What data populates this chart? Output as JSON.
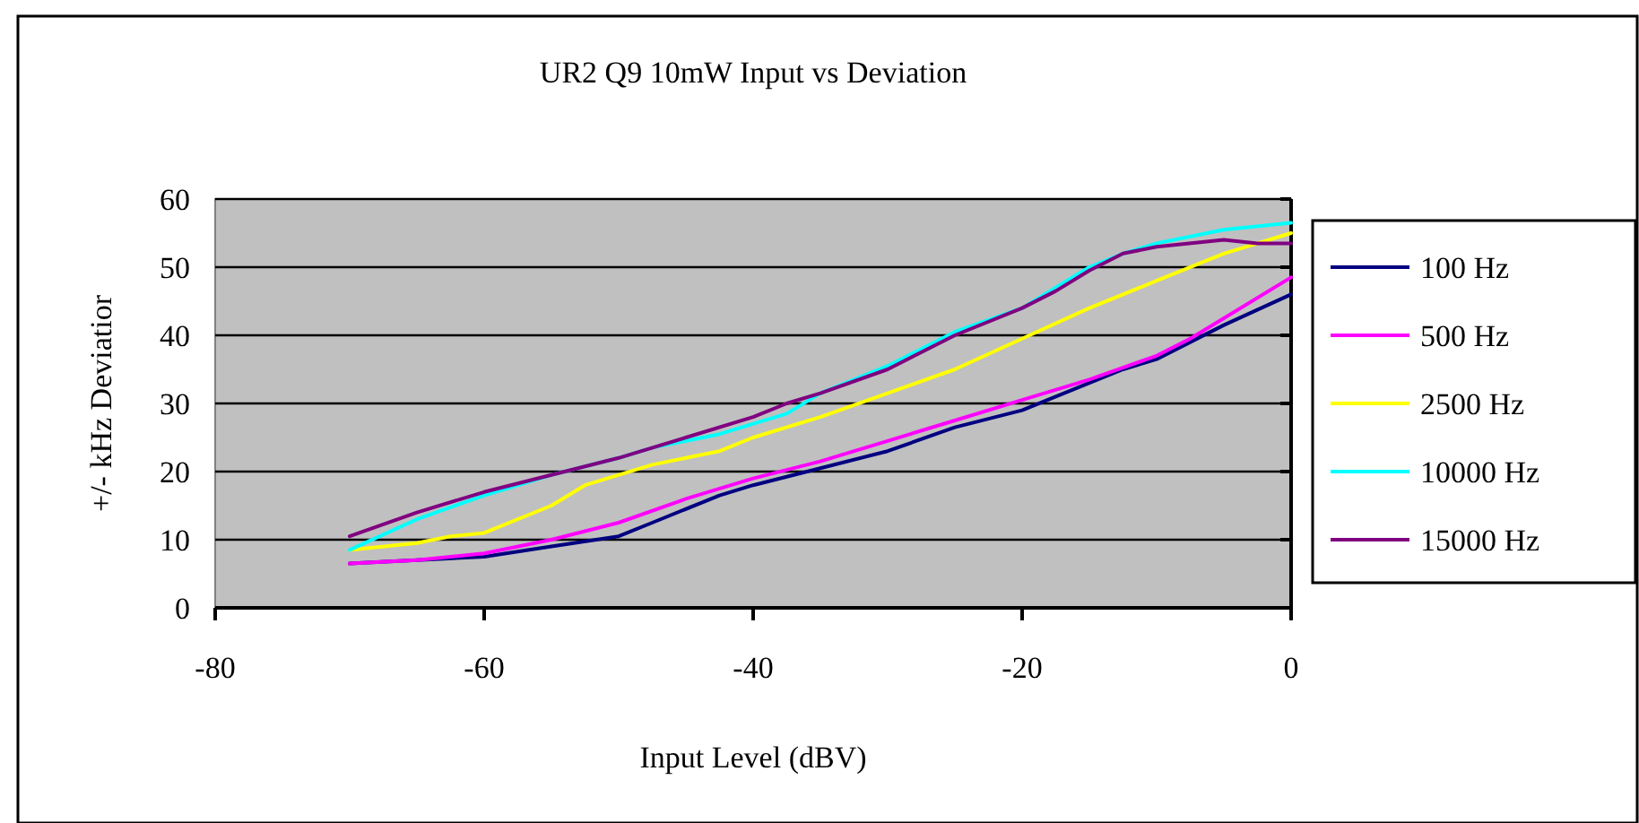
{
  "chart_data": {
    "type": "line",
    "title": "UR2 Q9 10mW Input vs Deviation",
    "xlabel": "Input Level (dBV)",
    "ylabel": "+/- kHz Deviatior",
    "xlim": [
      -80,
      0
    ],
    "xticks": [
      -80,
      -60,
      -40,
      -20,
      0
    ],
    "ylim": [
      0,
      60
    ],
    "yticks": [
      0,
      10,
      20,
      30,
      40,
      50,
      60
    ],
    "grid": "y",
    "legend": "right",
    "marker": "none",
    "line_style": "solid",
    "series": [
      {
        "name": "100 Hz",
        "color": "#000080",
        "x": [
          -70,
          -65,
          -60,
          -55,
          -50,
          -47.5,
          -42.5,
          -40,
          -35,
          -30,
          -25,
          -20,
          -15,
          -12.5,
          -10,
          -7.5,
          -5,
          0
        ],
        "values": [
          6.5,
          7,
          7.5,
          9,
          10.5,
          12.5,
          16.5,
          18,
          20.5,
          23,
          26.5,
          29,
          33,
          35,
          36.5,
          39,
          41.5,
          46
        ]
      },
      {
        "name": "500 Hz",
        "color": "#ff00ff",
        "x": [
          -70,
          -65,
          -60,
          -55,
          -50,
          -45,
          -40,
          -35,
          -30,
          -25,
          -20,
          -15,
          -10,
          -7.5,
          -5,
          0
        ],
        "values": [
          6.5,
          7,
          8,
          10,
          12.5,
          16,
          19,
          21.5,
          24.5,
          27.5,
          30.5,
          33.5,
          37,
          39.5,
          42.5,
          48.5
        ]
      },
      {
        "name": "2500 Hz",
        "color": "#ffff00",
        "x": [
          -70,
          -65,
          -62.5,
          -60,
          -55,
          -52.5,
          -47.5,
          -42.5,
          -40,
          -35,
          -30,
          -25,
          -20,
          -15,
          -10,
          -5,
          0
        ],
        "values": [
          8.5,
          9.5,
          10.5,
          11,
          15,
          18,
          21,
          23,
          25,
          28,
          31.5,
          35,
          39.5,
          44,
          48,
          52,
          55
        ]
      },
      {
        "name": "10000 Hz",
        "color": "#00ffff",
        "x": [
          -70,
          -65,
          -60,
          -55,
          -50,
          -47.5,
          -42.5,
          -37.5,
          -35,
          -30,
          -25,
          -20,
          -17.5,
          -15,
          -12.5,
          -10,
          -5,
          0
        ],
        "values": [
          8.5,
          13,
          16.5,
          19.5,
          22,
          23.5,
          25.5,
          28.5,
          31.5,
          35.5,
          40.5,
          44,
          47,
          50,
          52,
          53.5,
          55.5,
          56.5
        ]
      },
      {
        "name": "15000 Hz",
        "color": "#800080",
        "x": [
          -70,
          -65,
          -60,
          -55,
          -50,
          -45,
          -40,
          -37.5,
          -35,
          -30,
          -25,
          -20,
          -17.5,
          -15,
          -12.5,
          -10,
          -5,
          -2.5,
          0
        ],
        "values": [
          10.5,
          14,
          17,
          19.5,
          22,
          25,
          28,
          30,
          31.5,
          35,
          40,
          44,
          46.5,
          49.5,
          52,
          53,
          54,
          53.5,
          53.5
        ]
      }
    ]
  }
}
